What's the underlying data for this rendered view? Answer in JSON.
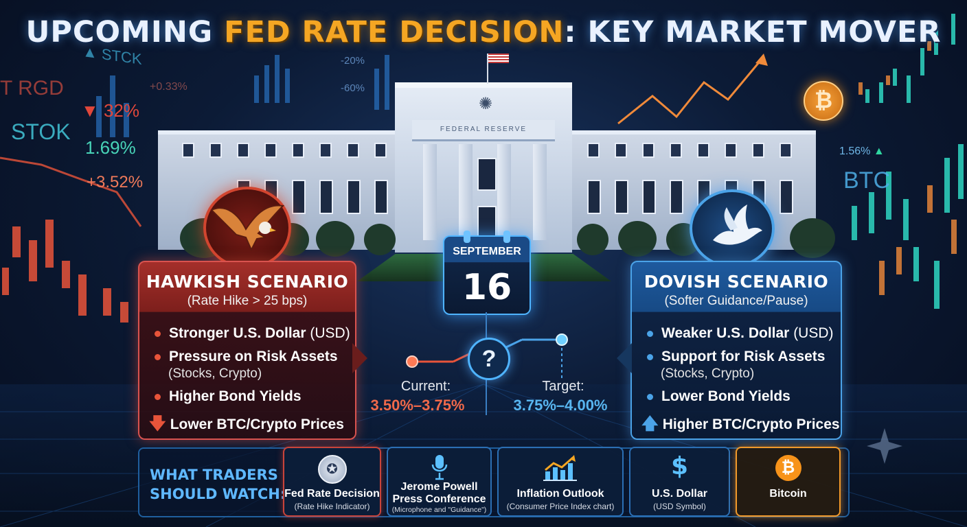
{
  "title": {
    "prefix": "UPCOMING ",
    "accent": "FED RATE DECISION",
    "suffix": ": KEY MARKET MOVER"
  },
  "background_text": {
    "left": [
      "T RGD",
      "STCK",
      "STOK",
      "+0.33%",
      "32%",
      "1.69%",
      "+3.52%"
    ],
    "right": [
      "1.56%",
      "BTC"
    ],
    "center": [
      "-20%",
      "-60%"
    ]
  },
  "hawkish": {
    "title": "HAWKISH SCENARIO",
    "subtitle": "(Rate Hike > 25 bps)",
    "bullets": [
      {
        "bold": "Stronger U.S. Dollar",
        "rest": " (USD)"
      },
      {
        "bold": "Pressure on Risk Assets",
        "rest": ""
      },
      {
        "bold": "Higher Bond Yields",
        "rest": ""
      },
      {
        "bold": "Lower BTC/Crypto Prices",
        "rest": ""
      }
    ],
    "sub_note": "(Stocks, Crypto)",
    "accent": "#d9534f"
  },
  "dovish": {
    "title": "DOVISH SCENARIO",
    "subtitle": "(Softer Guidance/Pause)",
    "bullets": [
      {
        "bold": "Weaker U.S. Dollar",
        "rest": " (USD)"
      },
      {
        "bold": "Support for Risk Assets",
        "rest": ""
      },
      {
        "bold": "Lower Bond Yields",
        "rest": ""
      },
      {
        "bold": "Higher BTC/Crypto Prices",
        "rest": ""
      }
    ],
    "sub_note": "(Stocks, Crypto)",
    "accent": "#4ba3e8"
  },
  "calendar": {
    "month": "SEPTEMBER",
    "day": "16"
  },
  "rates": {
    "current_label": "Current:",
    "current_value": "3.50%–3.75%",
    "target_label": "Target:",
    "target_value": "3.75%–4.00%",
    "question": "?"
  },
  "watch": {
    "heading_line1": "WHAT TRADERS",
    "heading_line2": "SHOULD WATCH:",
    "items": [
      {
        "title": "Fed Rate Decision",
        "sub": "(Rate Hike Indicator)",
        "icon": "fed-seal-icon"
      },
      {
        "title": "Jerome Powell Press Conference",
        "title_l1": "Jerome Powell",
        "title_l2": "Press Conference",
        "sub": "(Microphone and \"Guidance\")",
        "icon": "microphone-icon"
      },
      {
        "title": "Inflation Outlook",
        "sub": "(Consumer Price Index chart)",
        "icon": "rising-chart-icon"
      },
      {
        "title": "U.S. Dollar",
        "sub": "(USD Symbol)",
        "icon": "dollar-icon"
      },
      {
        "title": "Bitcoin",
        "sub": "",
        "icon": "bitcoin-icon"
      }
    ]
  },
  "building_sign": "FEDERAL RESERVE",
  "colors": {
    "hawk": "#d9534f",
    "dove": "#4ba3e8",
    "accent_gold": "#f5a623",
    "bitcoin": "#f7931a"
  }
}
